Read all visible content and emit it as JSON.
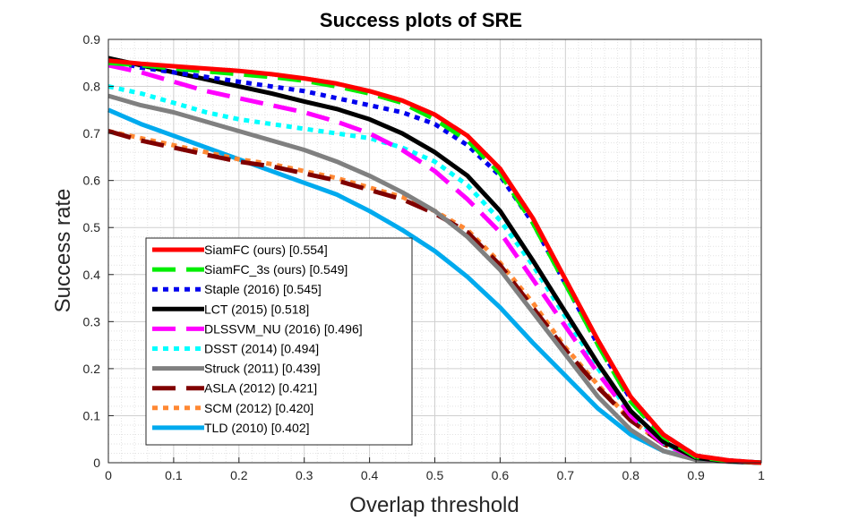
{
  "chart_data": {
    "type": "line",
    "title": "Success plots of SRE",
    "xlabel": "Overlap threshold",
    "ylabel": "Success rate",
    "xlim": [
      0,
      1
    ],
    "ylim": [
      0,
      0.9
    ],
    "xticks": [
      "0",
      "0.1",
      "0.2",
      "0.3",
      "0.4",
      "0.5",
      "0.6",
      "0.7",
      "0.8",
      "0.9",
      "1"
    ],
    "yticks": [
      "0",
      "0.1",
      "0.2",
      "0.3",
      "0.4",
      "0.5",
      "0.6",
      "0.7",
      "0.8",
      "0.9"
    ],
    "grid": "on",
    "legend_location": "bottom-left",
    "x": [
      0,
      0.05,
      0.1,
      0.15,
      0.2,
      0.25,
      0.3,
      0.35,
      0.4,
      0.45,
      0.5,
      0.55,
      0.6,
      0.65,
      0.7,
      0.75,
      0.8,
      0.85,
      0.9,
      0.95,
      1.0
    ],
    "series": [
      {
        "name": "SiamFC (ours) [0.554]",
        "color": "#ff0000",
        "dash": "solid",
        "values": [
          0.855,
          0.848,
          0.843,
          0.838,
          0.833,
          0.826,
          0.817,
          0.806,
          0.79,
          0.77,
          0.74,
          0.695,
          0.625,
          0.52,
          0.39,
          0.26,
          0.14,
          0.06,
          0.015,
          0.005,
          0.0
        ]
      },
      {
        "name": "SiamFC_3s (ours) [0.549]",
        "color": "#00ee00",
        "dash": "dashed",
        "values": [
          0.85,
          0.845,
          0.838,
          0.832,
          0.826,
          0.82,
          0.812,
          0.8,
          0.785,
          0.765,
          0.73,
          0.685,
          0.615,
          0.51,
          0.38,
          0.25,
          0.13,
          0.055,
          0.012,
          0.004,
          0.0
        ]
      },
      {
        "name": "Staple (2016) [0.545]",
        "color": "#0000ee",
        "dash": "dotted",
        "values": [
          0.855,
          0.84,
          0.83,
          0.82,
          0.81,
          0.8,
          0.79,
          0.775,
          0.76,
          0.745,
          0.72,
          0.675,
          0.61,
          0.51,
          0.38,
          0.25,
          0.135,
          0.06,
          0.015,
          0.005,
          0.0
        ]
      },
      {
        "name": "LCT (2015) [0.518]",
        "color": "#000000",
        "dash": "solid",
        "values": [
          0.86,
          0.845,
          0.83,
          0.815,
          0.8,
          0.785,
          0.768,
          0.752,
          0.73,
          0.7,
          0.66,
          0.61,
          0.535,
          0.43,
          0.32,
          0.21,
          0.11,
          0.045,
          0.01,
          0.003,
          0.0
        ]
      },
      {
        "name": "DLSSVM_NU (2016) [0.496]",
        "color": "#ff00ff",
        "dash": "dashed",
        "values": [
          0.845,
          0.83,
          0.81,
          0.79,
          0.775,
          0.76,
          0.745,
          0.725,
          0.7,
          0.665,
          0.62,
          0.56,
          0.49,
          0.39,
          0.29,
          0.19,
          0.1,
          0.04,
          0.01,
          0.003,
          0.0
        ]
      },
      {
        "name": "DSST (2014) [0.494]",
        "color": "#00ffff",
        "dash": "dotted",
        "values": [
          0.8,
          0.785,
          0.765,
          0.745,
          0.73,
          0.72,
          0.71,
          0.7,
          0.69,
          0.67,
          0.64,
          0.59,
          0.515,
          0.42,
          0.31,
          0.2,
          0.105,
          0.042,
          0.01,
          0.003,
          0.0
        ]
      },
      {
        "name": "Struck (2011) [0.439]",
        "color": "#808080",
        "dash": "solid",
        "values": [
          0.78,
          0.76,
          0.745,
          0.725,
          0.705,
          0.685,
          0.665,
          0.64,
          0.61,
          0.575,
          0.535,
          0.48,
          0.41,
          0.32,
          0.23,
          0.14,
          0.07,
          0.025,
          0.006,
          0.002,
          0.0
        ]
      },
      {
        "name": "ASLA (2012) [0.421]",
        "color": "#800000",
        "dash": "dashed",
        "values": [
          0.705,
          0.685,
          0.67,
          0.655,
          0.64,
          0.63,
          0.615,
          0.6,
          0.58,
          0.56,
          0.53,
          0.49,
          0.42,
          0.33,
          0.24,
          0.16,
          0.09,
          0.04,
          0.01,
          0.003,
          0.0
        ]
      },
      {
        "name": "SCM (2012) [0.420]",
        "color": "#ff8833",
        "dash": "dotted",
        "values": [
          0.705,
          0.69,
          0.675,
          0.66,
          0.645,
          0.635,
          0.62,
          0.605,
          0.585,
          0.565,
          0.535,
          0.495,
          0.425,
          0.34,
          0.245,
          0.165,
          0.09,
          0.04,
          0.01,
          0.003,
          0.0
        ]
      },
      {
        "name": "TLD (2010) [0.402]",
        "color": "#00aaee",
        "dash": "solid",
        "values": [
          0.75,
          0.72,
          0.695,
          0.67,
          0.645,
          0.62,
          0.595,
          0.57,
          0.535,
          0.495,
          0.45,
          0.395,
          0.33,
          0.255,
          0.185,
          0.115,
          0.06,
          0.025,
          0.008,
          0.003,
          0.0
        ]
      }
    ]
  }
}
